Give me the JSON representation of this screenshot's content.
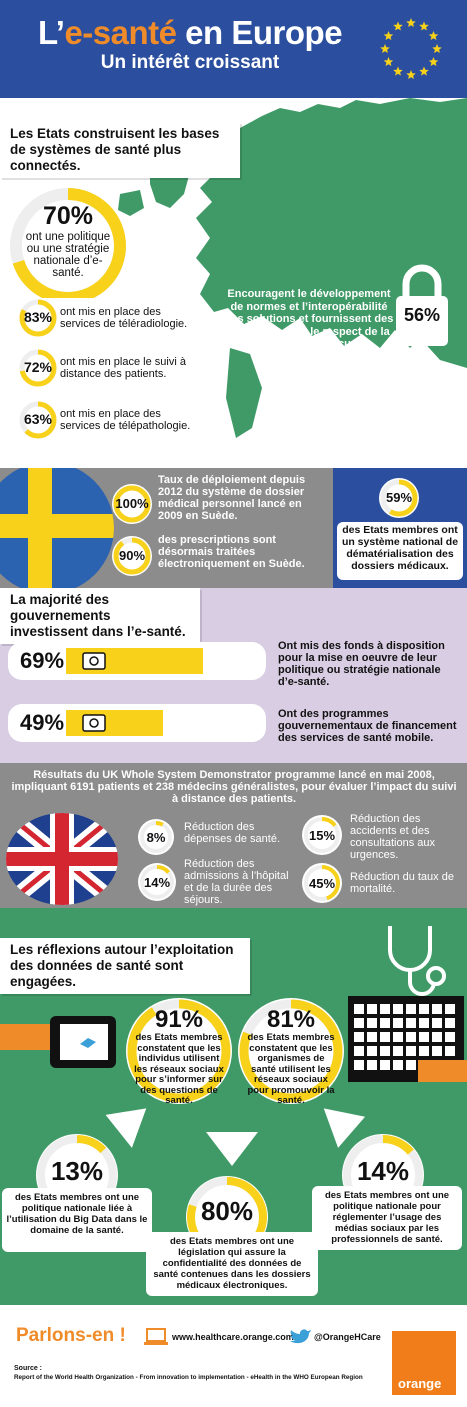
{
  "header": {
    "title_prefix": "L’",
    "title_highlight": "e-santé",
    "title_suffix": " en Europe",
    "subtitle": "Un intérêt croissant"
  },
  "colors": {
    "blue": "#2b4f9e",
    "orange": "#f08b2a",
    "yellow": "#f7d11a",
    "green": "#3f9a67",
    "grey": "#8c8c8c",
    "lilac": "#d9cde3"
  },
  "section1": {
    "banner": "Les Etats construisent les bases de systèmes de santé plus connectés.",
    "big_stat": {
      "value": "70%",
      "text": "ont une politique ou une stratégie nationale d’e-santé.",
      "fraction": 0.7
    },
    "stats": [
      {
        "value": "83%",
        "text": "ont mis en place des services de téléradiologie.",
        "fraction": 0.83
      },
      {
        "value": "72%",
        "text": "ont mis en place le suivi à distance des patients.",
        "fraction": 0.72
      },
      {
        "value": "63%",
        "text": "ont mis en place des services de télépathologie.",
        "fraction": 0.63
      }
    ],
    "lock_stat": {
      "value": "56%",
      "text": "Encouragent le développement de normes et l’interopérabilité des solutions et fournissent des directives pour le respect de la vie privée et la sécurité."
    }
  },
  "section2": {
    "stats": [
      {
        "value": "100%",
        "text": "Taux de déploiement depuis 2012 du système de dossier médical personnel lancé en 2009 en Suède.",
        "fraction": 1.0
      },
      {
        "value": "90%",
        "text": "des prescriptions sont désormais traitées électroniquement en Suède.",
        "fraction": 0.9
      }
    ],
    "right_stat": {
      "value": "59%",
      "text": "des Etats membres ont un système national de dématérialisation des dossiers médicaux.",
      "fraction": 0.59
    }
  },
  "section3": {
    "banner": "La majorité des gouvernements investissent dans l’e-santé.",
    "bars": [
      {
        "value": "69%",
        "text": "Ont mis des fonds à disposition pour la mise en oeuvre de leur politique ou stratégie nationale d’e-santé.",
        "fraction": 0.69
      },
      {
        "value": "49%",
        "text": "Ont des programmes gouvernementaux de financement des services de santé mobile.",
        "fraction": 0.49
      }
    ]
  },
  "section4": {
    "intro": "Résultats du UK Whole System Demonstrator programme lancé en mai 2008, impliquant 6191 patients et 238 médecins généralistes, pour évaluer l’impact du suivi à distance des patients.",
    "stats": [
      {
        "value": "8%",
        "text": "Réduction des dépenses de santé.",
        "fraction": 0.08
      },
      {
        "value": "15%",
        "text": "Réduction des accidents et des consultations aux urgences.",
        "fraction": 0.15
      },
      {
        "value": "14%",
        "text": "Réduction des admissions à l’hôpital et de la durée des séjours.",
        "fraction": 0.14
      },
      {
        "value": "45%",
        "text": "Réduction du taux de mortalité.",
        "fraction": 0.45
      }
    ]
  },
  "section5": {
    "banner": "Les réflexions autour l’exploitation des données de santé sont engagées.",
    "stats": [
      {
        "value": "91%",
        "text": "des Etats membres constatent que les individus utilisent les réseaux sociaux pour s’informer sur des questions de santé.",
        "fraction": 0.91
      },
      {
        "value": "81%",
        "text": "des Etats membres constatent que les organismes de santé utilisent les réseaux sociaux pour promouvoir la santé.",
        "fraction": 0.81
      },
      {
        "value": "13%",
        "text": "des Etats membres ont une politique nationale liée à l’utilisation du Big Data dans le domaine de la santé.",
        "fraction": 0.13
      },
      {
        "value": "14%",
        "text": "des Etats membres ont une politique nationale pour réglementer l’usage des médias sociaux par les professionnels de santé.",
        "fraction": 0.14
      },
      {
        "value": "80%",
        "text": "des Etats membres ont une législation qui assure la confidentialité des données de santé contenues dans les dossiers médicaux électroniques.",
        "fraction": 0.8
      }
    ]
  },
  "footer": {
    "cta": "Parlons-en !",
    "website": "www.healthcare.orange.com",
    "twitter": "@OrangeHCare",
    "source_label": "Source :",
    "source_text": "Report of the World Health Organization - From innovation to implementation - eHealth in the WHO European Region",
    "logo": "orange"
  }
}
